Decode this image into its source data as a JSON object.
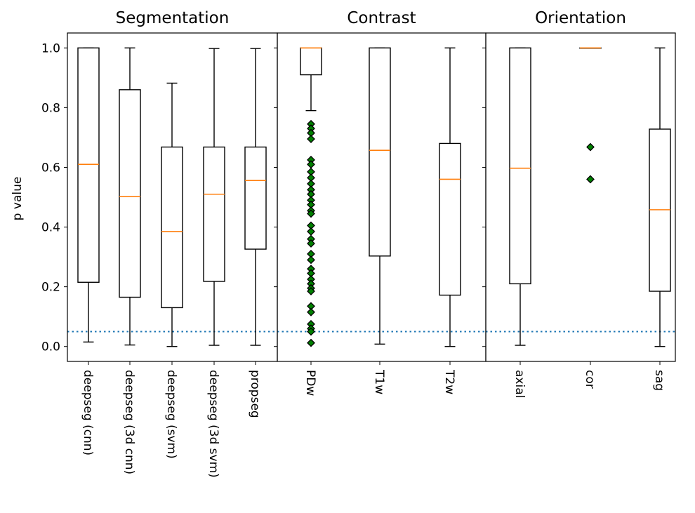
{
  "chart_data": [
    {
      "type": "box",
      "title": "Segmentation",
      "ylabel": "p value",
      "ylim": [
        -0.05,
        1.05
      ],
      "yticks": [
        "0.0",
        "0.2",
        "0.4",
        "0.6",
        "0.8",
        "1.0"
      ],
      "reference_line": 0.05,
      "boxes": [
        {
          "label": "deepseg (cnn)",
          "whisker_low": 0.015,
          "q1": 0.215,
          "median": 0.61,
          "q3": 1.0,
          "whisker_high": 1.0,
          "outliers": []
        },
        {
          "label": "deepseg (3d cnn)",
          "whisker_low": 0.005,
          "q1": 0.165,
          "median": 0.502,
          "q3": 0.86,
          "whisker_high": 1.0,
          "outliers": []
        },
        {
          "label": "deepseg (svm)",
          "whisker_low": 0.0,
          "q1": 0.13,
          "median": 0.385,
          "q3": 0.668,
          "whisker_high": 0.882,
          "outliers": []
        },
        {
          "label": "deepseg (3d svm)",
          "whisker_low": 0.004,
          "q1": 0.218,
          "median": 0.51,
          "q3": 0.668,
          "whisker_high": 0.998,
          "outliers": []
        },
        {
          "label": "propseg",
          "whisker_low": 0.004,
          "q1": 0.326,
          "median": 0.556,
          "q3": 0.668,
          "whisker_high": 0.998,
          "outliers": []
        }
      ]
    },
    {
      "type": "box",
      "title": "Contrast",
      "ylim": [
        -0.05,
        1.05
      ],
      "reference_line": 0.05,
      "boxes": [
        {
          "label": "PDw",
          "whisker_low": 0.79,
          "q1": 0.91,
          "median": 1.0,
          "q3": 1.0,
          "whisker_high": 1.0,
          "outliers": [
            0.745,
            0.73,
            0.715,
            0.695,
            0.625,
            0.61,
            0.585,
            0.565,
            0.545,
            0.525,
            0.51,
            0.49,
            0.475,
            0.455,
            0.445,
            0.405,
            0.385,
            0.36,
            0.345,
            0.31,
            0.29,
            0.26,
            0.245,
            0.225,
            0.21,
            0.195,
            0.185,
            0.135,
            0.115,
            0.075,
            0.06,
            0.05,
            0.012
          ]
        },
        {
          "label": "T1w",
          "whisker_low": 0.008,
          "q1": 0.303,
          "median": 0.657,
          "q3": 1.0,
          "whisker_high": 1.0,
          "outliers": []
        },
        {
          "label": "T2w",
          "whisker_low": 0.0,
          "q1": 0.172,
          "median": 0.56,
          "q3": 0.68,
          "whisker_high": 1.0,
          "outliers": []
        }
      ]
    },
    {
      "type": "box",
      "title": "Orientation",
      "ylim": [
        -0.05,
        1.05
      ],
      "reference_line": 0.05,
      "boxes": [
        {
          "label": "axial",
          "whisker_low": 0.004,
          "q1": 0.21,
          "median": 0.597,
          "q3": 1.0,
          "whisker_high": 1.0,
          "outliers": []
        },
        {
          "label": "cor",
          "whisker_low": 1.0,
          "q1": 1.0,
          "median": 1.0,
          "q3": 1.0,
          "whisker_high": 1.0,
          "outliers": [
            0.668,
            0.56
          ]
        },
        {
          "label": "sag",
          "whisker_low": 0.0,
          "q1": 0.185,
          "median": 0.458,
          "q3": 0.728,
          "whisker_high": 1.0,
          "outliers": []
        }
      ]
    }
  ],
  "colors": {
    "box_edge": "#000000",
    "median": "#ff7f0e",
    "outlier_fill": "#008000",
    "reference_line": "#1f77b4"
  }
}
